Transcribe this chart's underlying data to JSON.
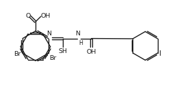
{
  "bg_color": "#ffffff",
  "line_color": "#1a1a1a",
  "line_width": 1.0,
  "font_size": 6.8,
  "fig_width": 2.62,
  "fig_height": 1.25,
  "xlim": [
    0,
    10.5
  ],
  "ylim": [
    0,
    5.0
  ]
}
